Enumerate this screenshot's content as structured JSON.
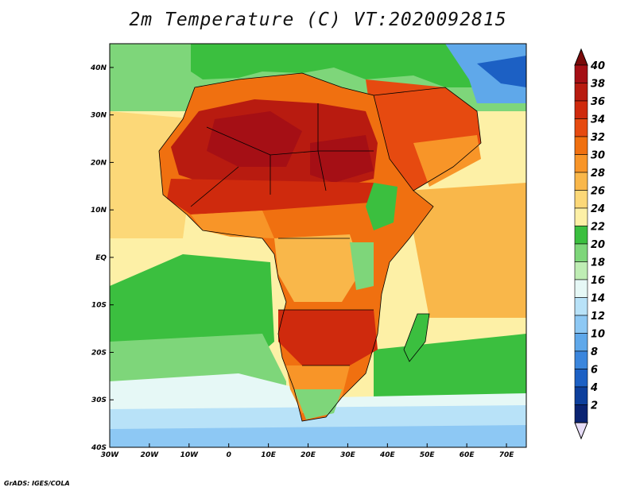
{
  "title": "2m Temperature (C) VT:2020092815",
  "credit": "GrADS: IGES/COLA",
  "map": {
    "lon_range": [
      -30,
      75
    ],
    "lat_range": [
      -40,
      45
    ],
    "y_ticks": [
      {
        "lat": 40,
        "label": "40N"
      },
      {
        "lat": 30,
        "label": "30N"
      },
      {
        "lat": 20,
        "label": "20N"
      },
      {
        "lat": 10,
        "label": "10N"
      },
      {
        "lat": 0,
        "label": "EQ"
      },
      {
        "lat": -10,
        "label": "10S"
      },
      {
        "lat": -20,
        "label": "20S"
      },
      {
        "lat": -30,
        "label": "30S"
      },
      {
        "lat": -40,
        "label": "40S"
      }
    ],
    "x_ticks": [
      {
        "lon": -30,
        "label": "30W"
      },
      {
        "lon": -20,
        "label": "20W"
      },
      {
        "lon": -10,
        "label": "10W"
      },
      {
        "lon": 0,
        "label": "0"
      },
      {
        "lon": 10,
        "label": "10E"
      },
      {
        "lon": 20,
        "label": "20E"
      },
      {
        "lon": 30,
        "label": "30E"
      },
      {
        "lon": 40,
        "label": "40E"
      },
      {
        "lon": 50,
        "label": "50E"
      },
      {
        "lon": 60,
        "label": "60E"
      },
      {
        "lon": 70,
        "label": "70E"
      }
    ]
  },
  "colorbar": {
    "levels": [
      {
        "value": "40",
        "color": "#a50f15"
      },
      {
        "value": "38",
        "color": "#b81b10"
      },
      {
        "value": "36",
        "color": "#cf2a0d"
      },
      {
        "value": "34",
        "color": "#e64a10"
      },
      {
        "value": "32",
        "color": "#f07010"
      },
      {
        "value": "30",
        "color": "#f89528"
      },
      {
        "value": "28",
        "color": "#f9b74a"
      },
      {
        "value": "26",
        "color": "#fcd878"
      },
      {
        "value": "24",
        "color": "#fdf0a6"
      },
      {
        "value": "22",
        "color": "#3bbf3f"
      },
      {
        "value": "20",
        "color": "#7ed67a"
      },
      {
        "value": "18",
        "color": "#bfedb4"
      },
      {
        "value": "16",
        "color": "#e6f8f6"
      },
      {
        "value": "14",
        "color": "#b8e2f8"
      },
      {
        "value": "12",
        "color": "#8dc8f4"
      },
      {
        "value": "10",
        "color": "#5fa8ea"
      },
      {
        "value": "8",
        "color": "#3b86dd"
      },
      {
        "value": "6",
        "color": "#1c60c4"
      },
      {
        "value": "4",
        "color": "#0d3f9c"
      },
      {
        "value": "2",
        "color": "#0a2372"
      }
    ],
    "top_arrow_color": "#7a0a0a",
    "bottom_arrow_color": "#e6dcf6"
  },
  "colors": {
    "ocean_warm": "#fcd878",
    "ocean_mid": "#fdf0a6",
    "ocean_cool_green": "#3bbf3f",
    "ocean_pale_green": "#7ed67a",
    "ocean_cold": "#b8e2f8",
    "ocean_colder": "#8dc8f4",
    "desert_hot": "#b81b10",
    "land_hot": "#e64a10",
    "land_warm": "#f89528",
    "land_green": "#3bbf3f",
    "border": "#000000"
  }
}
